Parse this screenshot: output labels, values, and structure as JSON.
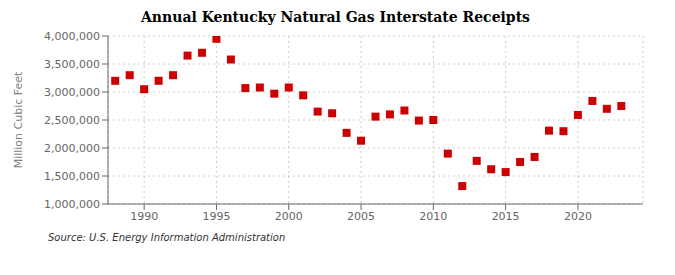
{
  "chart_data": {
    "type": "scatter",
    "title": "Annual Kentucky Natural Gas Interstate Receipts",
    "ylabel": "Million Cubic Feet",
    "annotations": [
      "Source: U.S. Energy Information Administration"
    ],
    "x": [
      1988,
      1989,
      1990,
      1991,
      1992,
      1993,
      1994,
      1995,
      1996,
      1997,
      1998,
      1999,
      2000,
      2001,
      2002,
      2003,
      2004,
      2005,
      2006,
      2007,
      2008,
      2009,
      2010,
      2011,
      2012,
      2013,
      2014,
      2015,
      2016,
      2017,
      2018,
      2019,
      2020,
      2021,
      2022,
      2023
    ],
    "values": [
      3200000,
      3300000,
      3050000,
      3200000,
      3300000,
      3650000,
      3700000,
      3950000,
      3580000,
      3070000,
      3080000,
      2970000,
      3080000,
      2940000,
      2650000,
      2620000,
      2270000,
      2130000,
      2560000,
      2600000,
      2670000,
      2490000,
      2500000,
      1900000,
      1320000,
      1770000,
      1620000,
      1570000,
      1750000,
      1840000,
      2310000,
      2300000,
      2590000,
      2840000,
      2700000,
      2750000
    ],
    "color": "#cc0000",
    "marker": "square",
    "xlim": [
      1987.5,
      2024.5
    ],
    "xticks": [
      1990,
      1995,
      2000,
      2005,
      2010,
      2015,
      2020
    ],
    "ylim": [
      1000000,
      4000000
    ],
    "yticks": [
      {
        "value": 1000000,
        "label": "1,000,000"
      },
      {
        "value": 1500000,
        "label": "1,500,000"
      },
      {
        "value": 2000000,
        "label": "2,000,000"
      },
      {
        "value": 2500000,
        "label": "2,500,000"
      },
      {
        "value": 3000000,
        "label": "3,000,000"
      },
      {
        "value": 3500000,
        "label": "3,500,000"
      },
      {
        "value": 4000000,
        "label": "4,000,000"
      }
    ],
    "grid": true
  }
}
